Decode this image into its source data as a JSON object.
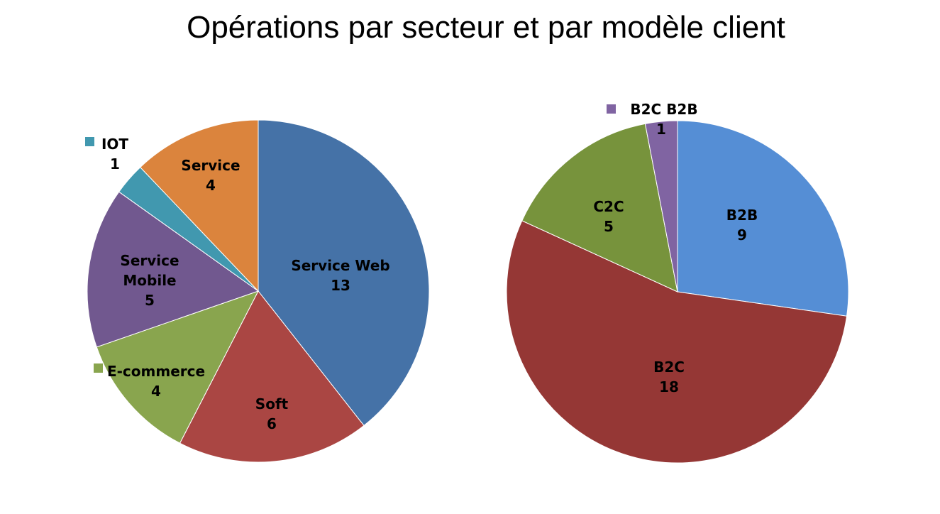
{
  "title": "Opérations par secteur et par modèle client",
  "chart_data": [
    {
      "type": "pie",
      "title": "",
      "slices": [
        {
          "label_lines": [
            "Service Web"
          ],
          "value": 13,
          "color": "#4572A7"
        },
        {
          "label_lines": [
            "Soft"
          ],
          "value": 6,
          "color": "#AA4643"
        },
        {
          "label_lines": [
            "E-commerce"
          ],
          "value": 4,
          "color": "#89A54E"
        },
        {
          "label_lines": [
            "Service",
            "Mobile"
          ],
          "value": 5,
          "color": "#71588F"
        },
        {
          "label_lines": [
            "IOT"
          ],
          "value": 1,
          "color": "#4198AF"
        },
        {
          "label_lines": [
            "Service"
          ],
          "value": 4,
          "color": "#DB843D"
        }
      ]
    },
    {
      "type": "pie",
      "title": "",
      "slices": [
        {
          "label_lines": [
            "B2B"
          ],
          "value": 9,
          "color": "#558ED5"
        },
        {
          "label_lines": [
            "B2C"
          ],
          "value": 18,
          "color": "#953735"
        },
        {
          "label_lines": [
            "C2C"
          ],
          "value": 5,
          "color": "#77933C"
        },
        {
          "label_lines": [
            "B2C B2B"
          ],
          "value": 1,
          "color": "#8064A2"
        }
      ]
    }
  ]
}
